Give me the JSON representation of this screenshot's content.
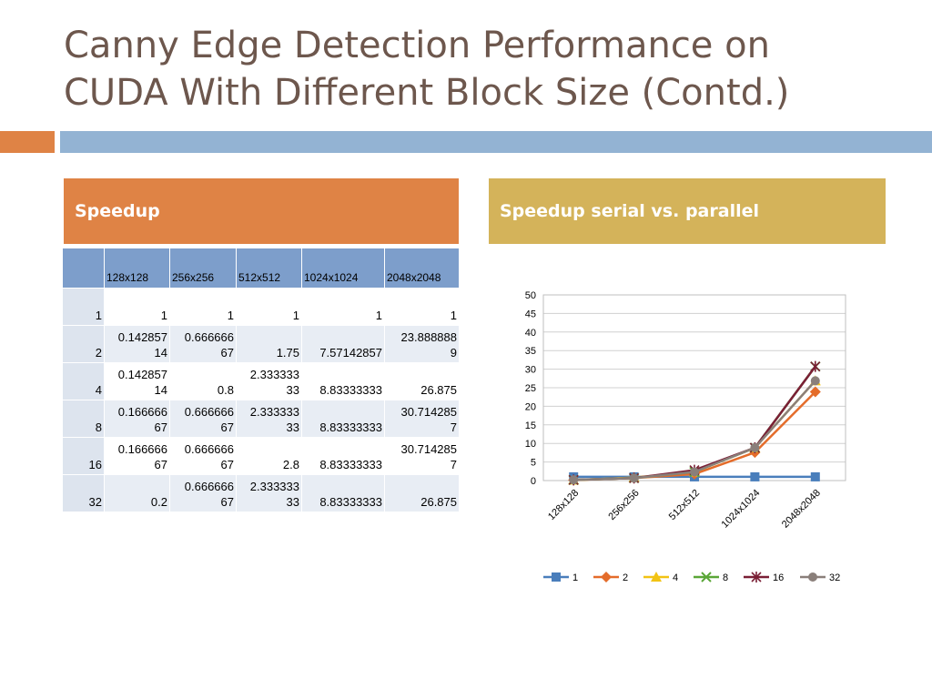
{
  "page": {
    "title": "Canny Edge Detection Performance on CUDA With Different Block Size (Contd.)"
  },
  "left_panel": {
    "header": "Speedup"
  },
  "right_panel": {
    "header": "Speedup serial vs. parallel"
  },
  "table": {
    "columns": [
      "",
      "128x128",
      "256x256",
      "512x512",
      "1024x1024",
      "2048x2048"
    ],
    "rows": [
      [
        "1",
        "1",
        "1",
        "1",
        "1",
        "1"
      ],
      [
        "2",
        "0.142857\n14",
        "0.666666\n67",
        "1.75",
        "7.57142857",
        "23.888888\n9"
      ],
      [
        "4",
        "0.142857\n14",
        "0.8",
        "2.333333\n33",
        "8.83333333",
        "26.875"
      ],
      [
        "8",
        "0.166666\n67",
        "0.666666\n67",
        "2.333333\n33",
        "8.83333333",
        "30.714285\n7"
      ],
      [
        "16",
        "0.166666\n67",
        "0.666666\n67",
        "2.8",
        "8.83333333",
        "30.714285\n7"
      ],
      [
        "32",
        "0.2",
        "0.666666\n67",
        "2.333333\n33",
        "8.83333333",
        "26.875"
      ]
    ]
  },
  "chart_data": {
    "type": "line",
    "title": "",
    "xlabel": "",
    "ylabel": "",
    "categories": [
      "128x128",
      "256x256",
      "512x512",
      "1024x1024",
      "2048x2048"
    ],
    "ylim": [
      0,
      50
    ],
    "yticks": [
      "0",
      "5",
      "10",
      "15",
      "20",
      "25",
      "30",
      "35",
      "40",
      "45",
      "50"
    ],
    "grid": true,
    "legend_position": "bottom",
    "series": [
      {
        "name": "1",
        "values": [
          1,
          1,
          1,
          1,
          1
        ],
        "color": "#4a7ebb",
        "marker": "square"
      },
      {
        "name": "2",
        "values": [
          0.14285714,
          0.66666667,
          1.75,
          7.57142857,
          23.8888889
        ],
        "color": "#e46c2a",
        "marker": "diamond"
      },
      {
        "name": "4",
        "values": [
          0.14285714,
          0.8,
          2.33333333,
          8.83333333,
          26.875
        ],
        "color": "#f2c314",
        "marker": "triangle"
      },
      {
        "name": "8",
        "values": [
          0.16666667,
          0.66666667,
          2.33333333,
          8.83333333,
          30.7142857
        ],
        "color": "#5aa637",
        "marker": "x"
      },
      {
        "name": "16",
        "values": [
          0.16666667,
          0.66666667,
          2.8,
          8.83333333,
          30.7142857
        ],
        "color": "#7a1f35",
        "marker": "star"
      },
      {
        "name": "32",
        "values": [
          0.2,
          0.66666667,
          2.33333333,
          8.83333333,
          26.875
        ],
        "color": "#8a7f7a",
        "marker": "circle"
      }
    ]
  }
}
